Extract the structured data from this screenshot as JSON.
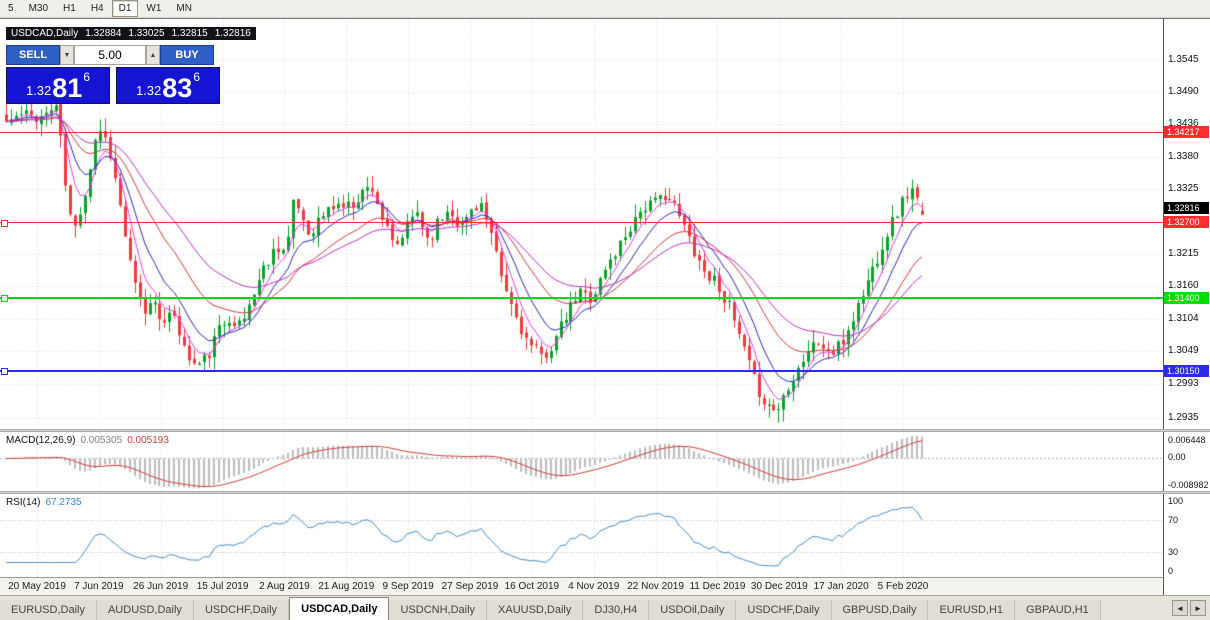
{
  "toolbar": {
    "timeframes": [
      {
        "label": "5"
      },
      {
        "label": "M30"
      },
      {
        "label": "H1"
      },
      {
        "label": "H4"
      },
      {
        "label": "D1"
      },
      {
        "label": "W1"
      },
      {
        "label": "MN"
      }
    ],
    "active": "D1"
  },
  "chart": {
    "symbol": "USDCAD,Daily",
    "open": "1.32884",
    "high": "1.33025",
    "low": "1.32815",
    "close": "1.32816"
  },
  "one_click": {
    "sell_label": "SELL",
    "buy_label": "BUY",
    "volume": "5.00",
    "spin_down": "▼",
    "spin_up": "▲",
    "sell_price": {
      "prefix": "1.32",
      "big": "81",
      "sup": "6"
    },
    "buy_price": {
      "prefix": "1.32",
      "big": "83",
      "sup": "6"
    },
    "panel_blue": "#1414d2",
    "button_blue": "#2d5fc4"
  },
  "price_axis": {
    "labels": [
      "1.3545",
      "1.3490",
      "1.3436",
      "1.3380",
      "1.3325",
      "1.3270",
      "1.3215",
      "1.3160",
      "1.3104",
      "1.3049",
      "1.2993",
      "1.2935"
    ],
    "current_value": "1.32816"
  },
  "hlines": [
    {
      "price": 1.34217,
      "label": "1.34217",
      "color": "#fe2e2e",
      "thickness": 1,
      "handle": false
    },
    {
      "price": 1.327,
      "label": "1.32700",
      "color": "#fe2e2e",
      "thickness": 1,
      "handle": true
    },
    {
      "price": 1.314,
      "label": "1.31400",
      "color": "#00dd00",
      "thickness": 2,
      "handle": true
    },
    {
      "price": 1.3015,
      "label": "1.30150",
      "color": "#2b2bf0",
      "thickness": 2,
      "handle": true
    }
  ],
  "macd": {
    "name": "MACD(12,26,9)",
    "value_main": "0.005305",
    "value_signal": "0.005193",
    "axis_top": "0.006448",
    "axis_zero": "0.00",
    "axis_bottom": "-0.008982",
    "fast": 12,
    "slow": 26,
    "signal": 9,
    "hist_color": "#bdbdbd",
    "signal_color": "#d43c3c"
  },
  "rsi": {
    "name": "RSI(14)",
    "value": "67.2735",
    "period": 14,
    "levels": [
      70,
      30
    ],
    "axis_labels": [
      "100",
      "70",
      "30",
      "0"
    ],
    "color": "#4a8fc7"
  },
  "tabs": {
    "items": [
      {
        "label": "EURUSD,Daily"
      },
      {
        "label": "AUDUSD,Daily"
      },
      {
        "label": "USDCHF,Daily"
      },
      {
        "label": "USDCAD,Daily"
      },
      {
        "label": "USDCNH,Daily"
      },
      {
        "label": "XAUUSD,Daily"
      },
      {
        "label": "DJ30,H4"
      },
      {
        "label": "USDOil,Daily"
      },
      {
        "label": "USDCHF,Daily"
      },
      {
        "label": "GBPUSD,Daily"
      },
      {
        "label": "EURUSD,H1"
      },
      {
        "label": "GBPAUD,H1"
      }
    ],
    "active_index": 3,
    "scroll_left": "◄",
    "scroll_right": "►"
  },
  "chart_data": {
    "type": "candlestick",
    "symbol": "USDCAD",
    "timeframe": "Daily",
    "ohlc_current": {
      "open": 1.32884,
      "high": 1.33025,
      "low": 1.32815,
      "close": 1.32816
    },
    "y_range": [
      1.2915,
      1.3615
    ],
    "num_candles": 186,
    "noise_seed": 11,
    "candle_colors": {
      "up": "#0aa32a",
      "down": "#f03b3b"
    },
    "grid_color": "#e0e0e0",
    "moving_averages": [
      {
        "period": 5,
        "color": "#ef3cef"
      },
      {
        "period": 10,
        "color": "#2a2ab8"
      },
      {
        "period": 21,
        "color": "#d23a3a"
      },
      {
        "period": 34,
        "color": "#c030c0"
      }
    ],
    "horizontal_levels": [
      1.34217,
      1.327,
      1.314,
      1.3015
    ],
    "date_labels": [
      "20 May 2019",
      "7 Jun 2019",
      "26 Jun 2019",
      "15 Jul 2019",
      "2 Aug 2019",
      "21 Aug 2019",
      "9 Sep 2019",
      "27 Sep 2019",
      "16 Oct 2019",
      "4 Nov 2019",
      "22 Nov 2019",
      "11 Dec 2019",
      "30 Dec 2019",
      "17 Jan 2020",
      "5 Feb 2020"
    ],
    "price_waypoints": [
      [
        0.0,
        1.344
      ],
      [
        0.018,
        1.3452
      ],
      [
        0.04,
        1.3448
      ],
      [
        0.055,
        1.347
      ],
      [
        0.068,
        1.329
      ],
      [
        0.075,
        1.3255
      ],
      [
        0.088,
        1.333
      ],
      [
        0.1,
        1.3435
      ],
      [
        0.112,
        1.34
      ],
      [
        0.125,
        1.329
      ],
      [
        0.138,
        1.317
      ],
      [
        0.15,
        1.3115
      ],
      [
        0.163,
        1.314
      ],
      [
        0.172,
        1.309
      ],
      [
        0.184,
        1.3115
      ],
      [
        0.196,
        1.3045
      ],
      [
        0.208,
        1.3022
      ],
      [
        0.22,
        1.304
      ],
      [
        0.232,
        1.3085
      ],
      [
        0.244,
        1.311
      ],
      [
        0.256,
        1.309
      ],
      [
        0.27,
        1.315
      ],
      [
        0.284,
        1.32
      ],
      [
        0.296,
        1.323
      ],
      [
        0.306,
        1.322
      ],
      [
        0.315,
        1.331
      ],
      [
        0.33,
        1.325
      ],
      [
        0.345,
        1.328
      ],
      [
        0.36,
        1.33
      ],
      [
        0.375,
        1.3295
      ],
      [
        0.388,
        1.332
      ],
      [
        0.4,
        1.333
      ],
      [
        0.412,
        1.327
      ],
      [
        0.424,
        1.322
      ],
      [
        0.436,
        1.3255
      ],
      [
        0.448,
        1.329
      ],
      [
        0.46,
        1.324
      ],
      [
        0.472,
        1.327
      ],
      [
        0.484,
        1.3295
      ],
      [
        0.496,
        1.326
      ],
      [
        0.508,
        1.329
      ],
      [
        0.518,
        1.3305
      ],
      [
        0.53,
        1.324
      ],
      [
        0.543,
        1.316
      ],
      [
        0.556,
        1.311
      ],
      [
        0.57,
        1.306
      ],
      [
        0.585,
        1.3038
      ],
      [
        0.598,
        1.3065
      ],
      [
        0.612,
        1.311
      ],
      [
        0.626,
        1.315
      ],
      [
        0.64,
        1.314
      ],
      [
        0.653,
        1.3185
      ],
      [
        0.666,
        1.322
      ],
      [
        0.68,
        1.326
      ],
      [
        0.694,
        1.3295
      ],
      [
        0.708,
        1.33
      ],
      [
        0.72,
        1.332
      ],
      [
        0.733,
        1.3285
      ],
      [
        0.748,
        1.3235
      ],
      [
        0.762,
        1.3185
      ],
      [
        0.777,
        1.3165
      ],
      [
        0.79,
        1.312
      ],
      [
        0.803,
        1.306
      ],
      [
        0.817,
        1.2995
      ],
      [
        0.83,
        1.2958
      ],
      [
        0.842,
        1.2948
      ],
      [
        0.853,
        1.299
      ],
      [
        0.865,
        1.3022
      ],
      [
        0.877,
        1.3055
      ],
      [
        0.888,
        1.3065
      ],
      [
        0.9,
        1.3042
      ],
      [
        0.912,
        1.306
      ],
      [
        0.924,
        1.3105
      ],
      [
        0.937,
        1.3155
      ],
      [
        0.95,
        1.3205
      ],
      [
        0.963,
        1.3255
      ],
      [
        0.977,
        1.33
      ],
      [
        0.988,
        1.3328
      ],
      [
        1.0,
        1.3282
      ]
    ]
  }
}
